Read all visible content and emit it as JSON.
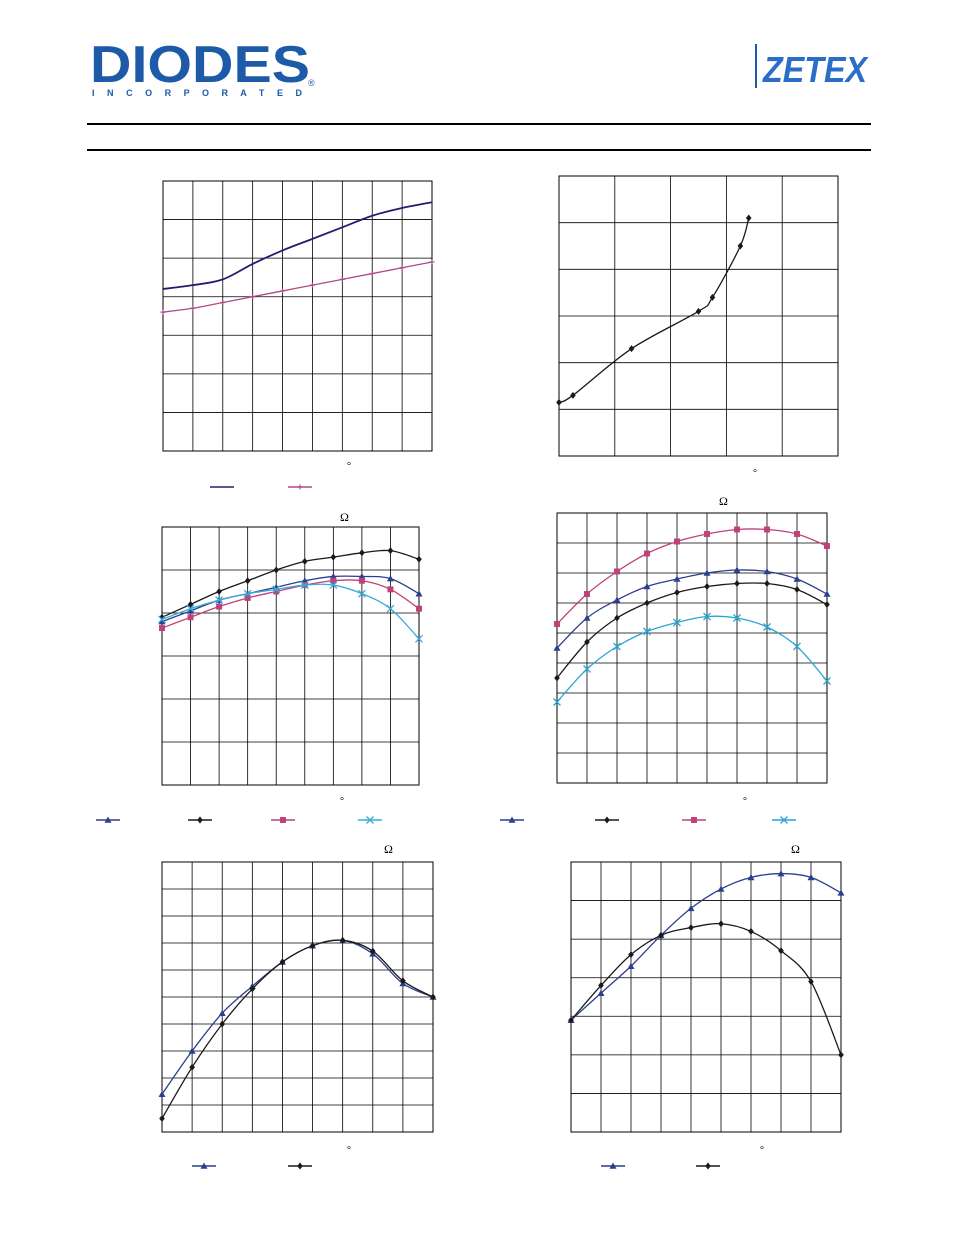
{
  "header": {
    "diodes_wordmark": "DIODES",
    "diodes_tagline": "I N C O R P O R A T E D",
    "diodes_registered": "®",
    "zetex_wordmark": "ZETEX",
    "brand_blue": "#1d5aa8",
    "zetex_blue": "#2a6ec8"
  },
  "symbols": {
    "degree": "°",
    "ohm": "Ω"
  },
  "chart_data": [
    {
      "type": "line",
      "x": [
        0,
        1,
        2,
        3,
        4,
        5,
        6,
        7,
        8,
        9
      ],
      "series": [
        {
          "color": "#2a1a6e",
          "marker": "none",
          "values": [
            4.2,
            4.3,
            4.45,
            4.85,
            5.2,
            5.5,
            5.8,
            6.1,
            6.3,
            6.45
          ]
        },
        {
          "color": "#b04a86",
          "marker": "plus",
          "values": [
            3.6,
            3.7,
            3.85,
            4.0,
            4.15,
            4.3,
            4.45,
            4.6,
            4.75,
            4.9
          ]
        }
      ],
      "xlim": [
        0,
        9
      ],
      "ylim": [
        0,
        7
      ],
      "grid": true,
      "legend": "bottom"
    },
    {
      "type": "line",
      "x": [
        0,
        0.25,
        1.3,
        2.5,
        2.75,
        3.25,
        3.4
      ],
      "series": [
        {
          "color": "#1a1a1a",
          "marker": "diamond",
          "values": [
            1.15,
            1.3,
            2.3,
            3.1,
            3.4,
            4.5,
            5.1
          ]
        }
      ],
      "xlim": [
        0,
        5
      ],
      "ylim": [
        0,
        6
      ],
      "grid": true
    },
    {
      "type": "line",
      "x": [
        0,
        1,
        2,
        3,
        4,
        5,
        6,
        7,
        8,
        9
      ],
      "series": [
        {
          "color": "#2a3f8f",
          "marker": "triangle",
          "values": [
            3.8,
            4.05,
            4.3,
            4.45,
            4.6,
            4.75,
            4.85,
            4.85,
            4.8,
            4.45
          ]
        },
        {
          "color": "#1a1a1a",
          "marker": "diamond",
          "values": [
            3.9,
            4.2,
            4.5,
            4.75,
            5.0,
            5.2,
            5.3,
            5.4,
            5.45,
            5.25
          ]
        },
        {
          "color": "#c0407a",
          "marker": "square",
          "values": [
            3.65,
            3.9,
            4.15,
            4.35,
            4.5,
            4.65,
            4.75,
            4.75,
            4.55,
            4.1
          ]
        },
        {
          "color": "#3aaad8",
          "marker": "x",
          "values": [
            3.85,
            4.1,
            4.3,
            4.45,
            4.55,
            4.65,
            4.65,
            4.45,
            4.1,
            3.4
          ]
        }
      ],
      "xlim": [
        0,
        9
      ],
      "ylim": [
        0,
        6
      ],
      "grid": true,
      "legend": "bottom"
    },
    {
      "type": "line",
      "x": [
        0,
        1,
        2,
        3,
        4,
        5,
        6,
        7,
        8,
        9
      ],
      "series": [
        {
          "color": "#2a3f8f",
          "marker": "triangle",
          "values": [
            4.5,
            5.5,
            6.1,
            6.55,
            6.8,
            7.0,
            7.1,
            7.05,
            6.8,
            6.3
          ]
        },
        {
          "color": "#1a1a1a",
          "marker": "diamond",
          "values": [
            3.5,
            4.7,
            5.5,
            6.0,
            6.35,
            6.55,
            6.65,
            6.65,
            6.45,
            5.95
          ]
        },
        {
          "color": "#c0407a",
          "marker": "square",
          "values": [
            5.3,
            6.3,
            7.05,
            7.65,
            8.05,
            8.3,
            8.45,
            8.45,
            8.3,
            7.9
          ]
        },
        {
          "color": "#2aa6d6",
          "marker": "x",
          "values": [
            2.7,
            3.8,
            4.55,
            5.05,
            5.35,
            5.55,
            5.5,
            5.2,
            4.55,
            3.4
          ]
        }
      ],
      "xlim": [
        0,
        9
      ],
      "ylim": [
        0,
        9
      ],
      "grid": true,
      "legend": "bottom"
    },
    {
      "type": "line",
      "x": [
        0,
        1,
        2,
        3,
        4,
        5,
        6,
        7,
        8,
        9
      ],
      "series": [
        {
          "color": "#2a3f8f",
          "marker": "triangle",
          "values": [
            1.4,
            3.0,
            4.4,
            5.4,
            6.3,
            6.9,
            7.1,
            6.6,
            5.5,
            5.0
          ]
        },
        {
          "color": "#1a1a1a",
          "marker": "diamond",
          "values": [
            0.5,
            2.4,
            4.0,
            5.3,
            6.3,
            6.9,
            7.1,
            6.7,
            5.6,
            5.0
          ]
        }
      ],
      "xlim": [
        0,
        9
      ],
      "ylim": [
        0,
        10
      ],
      "grid": true,
      "legend": "bottom"
    },
    {
      "type": "line",
      "x": [
        0,
        1,
        2,
        3,
        4,
        5,
        6,
        7,
        8,
        9
      ],
      "series": [
        {
          "color": "#2a3f8f",
          "marker": "triangle",
          "values": [
            2.9,
            3.6,
            4.3,
            5.1,
            5.8,
            6.3,
            6.6,
            6.7,
            6.6,
            6.2
          ]
        },
        {
          "color": "#1a1a1a",
          "marker": "diamond",
          "values": [
            2.9,
            3.8,
            4.6,
            5.1,
            5.3,
            5.4,
            5.2,
            4.7,
            3.9,
            2.0
          ]
        }
      ],
      "xlim": [
        0,
        9
      ],
      "ylim": [
        0,
        7
      ],
      "grid": true,
      "legend": "bottom"
    }
  ]
}
